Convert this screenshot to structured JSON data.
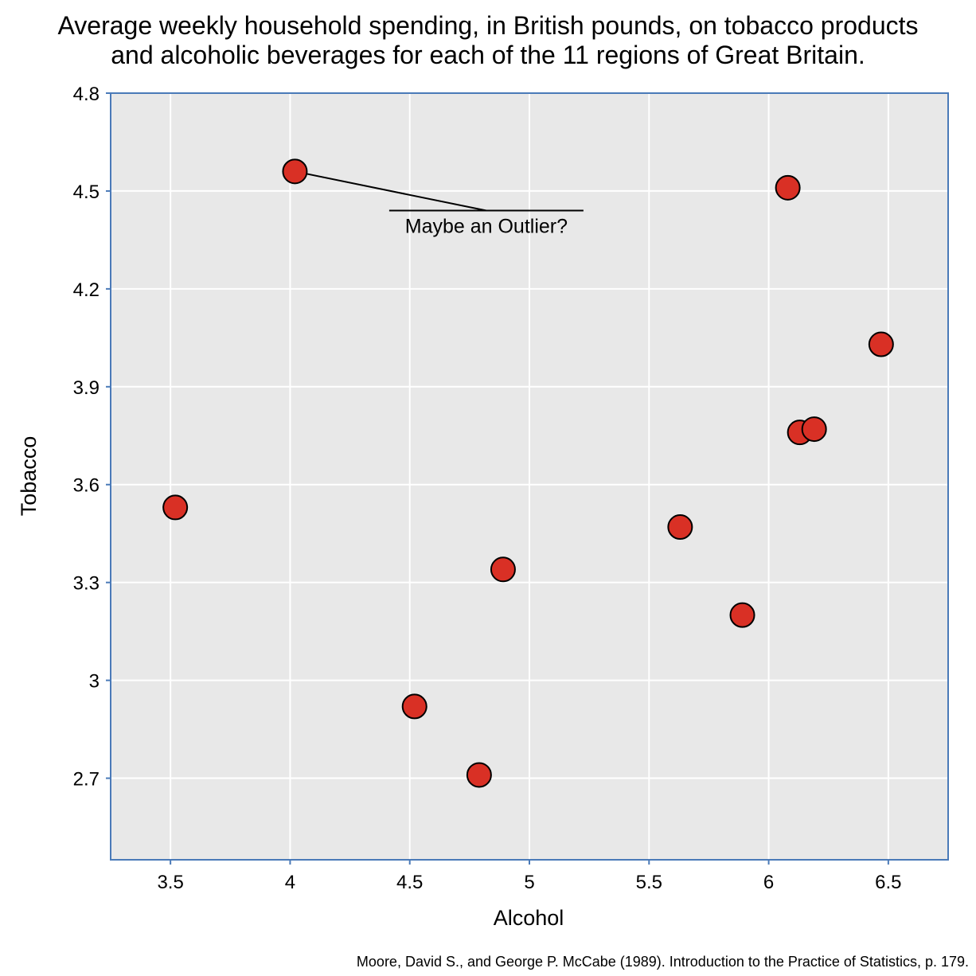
{
  "chart_data": {
    "type": "scatter",
    "title_lines": [
      "Average weekly household spending, in British pounds, on tobacco products",
      "and alcoholic beverages for each of the 11 regions of Great Britain."
    ],
    "xlabel": "Alcohol",
    "ylabel": "Tobacco",
    "xlim": [
      3.25,
      6.75
    ],
    "ylim": [
      2.45,
      4.8
    ],
    "xticks": [
      3.5,
      4,
      4.5,
      5,
      5.5,
      6,
      6.5
    ],
    "xtick_labels": [
      "3.5",
      "4",
      "4.5",
      "5",
      "5.5",
      "6",
      "6.5"
    ],
    "yticks": [
      2.7,
      3,
      3.3,
      3.6,
      3.9,
      4.2,
      4.5,
      4.8
    ],
    "ytick_labels": [
      "2.7",
      "3",
      "3.3",
      "3.6",
      "3.9",
      "4.2",
      "4.5",
      "4.8"
    ],
    "grid": true,
    "points": [
      {
        "x": 3.52,
        "y": 3.53
      },
      {
        "x": 4.02,
        "y": 4.56
      },
      {
        "x": 4.52,
        "y": 2.92
      },
      {
        "x": 4.79,
        "y": 2.71
      },
      {
        "x": 4.89,
        "y": 3.34
      },
      {
        "x": 5.63,
        "y": 3.47
      },
      {
        "x": 5.89,
        "y": 3.2
      },
      {
        "x": 6.08,
        "y": 4.51
      },
      {
        "x": 6.13,
        "y": 3.76
      },
      {
        "x": 6.19,
        "y": 3.77
      },
      {
        "x": 6.47,
        "y": 4.03
      }
    ],
    "annotation": {
      "text": "Maybe an Outlier?",
      "x": 4.82,
      "y": 4.44,
      "target_x": 4.02,
      "target_y": 4.56
    },
    "source": "Moore, David S., and George P. McCabe (1989). Introduction to the Practice of Statistics, p. 179."
  },
  "colors": {
    "plot_background": "#e8e8e8",
    "grid": "#ffffff",
    "axis": "#4a7ab8",
    "marker_fill": "#d93025",
    "marker_stroke": "#000000"
  }
}
